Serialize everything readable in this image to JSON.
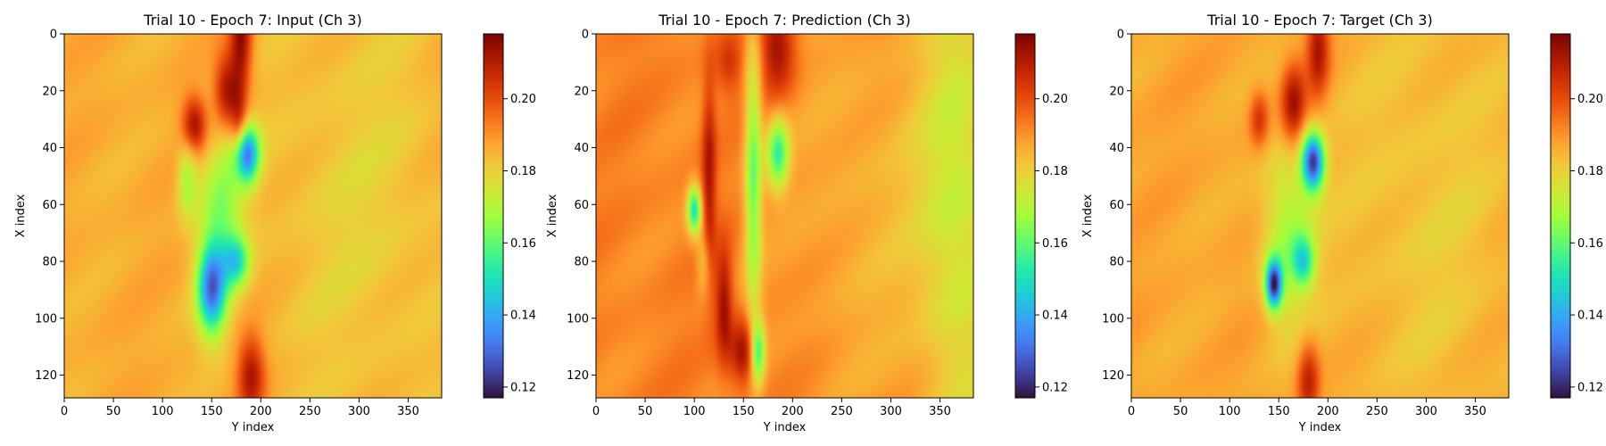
{
  "colormap": "turbo",
  "colormap_stops": [
    "#30123b",
    "#4145ab",
    "#4675ed",
    "#39a2fc",
    "#1bcfd4",
    "#24eca6",
    "#61fc6c",
    "#a4fc3b",
    "#d1e834",
    "#f3c63a",
    "#fe9b2d",
    "#f36315",
    "#d93806",
    "#b11901",
    "#7a0402"
  ],
  "chart_data": [
    {
      "type": "heatmap",
      "title": "Trial 10 - Epoch 7: Input (Ch 3)",
      "xlabel": "Y index",
      "ylabel": "X index",
      "xlim": [
        0,
        384
      ],
      "ylim": [
        128,
        0
      ],
      "xticks": [
        "0",
        "50",
        "100",
        "150",
        "200",
        "250",
        "300",
        "350"
      ],
      "yticks": [
        "0",
        "20",
        "40",
        "60",
        "80",
        "100",
        "120"
      ],
      "colorbar": {
        "range": [
          0.117,
          0.218
        ],
        "ticks": [
          "0.12",
          "0.14",
          "0.16",
          "0.18",
          "0.20"
        ]
      },
      "background_value": 0.186,
      "features": [
        {
          "x": 180,
          "y": 2,
          "sx": 8,
          "sy": 14,
          "value": 0.215
        },
        {
          "x": 165,
          "y": 20,
          "sx": 9,
          "sy": 9,
          "value": 0.212
        },
        {
          "x": 132,
          "y": 32,
          "sx": 9,
          "sy": 7,
          "value": 0.214
        },
        {
          "x": 178,
          "y": 35,
          "sx": 6,
          "sy": 10,
          "value": 0.208
        },
        {
          "x": 185,
          "y": 42,
          "sx": 9,
          "sy": 7,
          "value": 0.132
        },
        {
          "x": 150,
          "y": 90,
          "sx": 10,
          "sy": 11,
          "value": 0.138
        },
        {
          "x": 175,
          "y": 80,
          "sx": 9,
          "sy": 6,
          "value": 0.158
        },
        {
          "x": 160,
          "y": 65,
          "sx": 16,
          "sy": 20,
          "value": 0.165
        },
        {
          "x": 125,
          "y": 50,
          "sx": 7,
          "sy": 10,
          "value": 0.168
        },
        {
          "x": 190,
          "y": 120,
          "sx": 10,
          "sy": 10,
          "value": 0.212
        },
        {
          "x": 300,
          "y": 60,
          "sx": 70,
          "sy": 60,
          "value": 0.18
        }
      ]
    },
    {
      "type": "heatmap",
      "title": "Trial 10 - Epoch 7: Prediction (Ch 3)",
      "xlabel": "Y index",
      "ylabel": "X index",
      "xlim": [
        0,
        384
      ],
      "ylim": [
        128,
        0
      ],
      "xticks": [
        "0",
        "50",
        "100",
        "150",
        "200",
        "250",
        "300",
        "350"
      ],
      "yticks": [
        "0",
        "20",
        "40",
        "60",
        "80",
        "100",
        "120"
      ],
      "colorbar": {
        "range": [
          0.117,
          0.218
        ],
        "ticks": [
          "0.12",
          "0.14",
          "0.16",
          "0.18",
          "0.20"
        ]
      },
      "background_value": 0.192,
      "features": [
        {
          "x": 185,
          "y": 5,
          "sx": 12,
          "sy": 12,
          "value": 0.214
        },
        {
          "x": 135,
          "y": 10,
          "sx": 10,
          "sy": 8,
          "value": 0.205
        },
        {
          "x": 160,
          "y": 50,
          "sx": 6,
          "sy": 35,
          "value": 0.162
        },
        {
          "x": 185,
          "y": 42,
          "sx": 8,
          "sy": 9,
          "value": 0.158
        },
        {
          "x": 100,
          "y": 62,
          "sx": 5,
          "sy": 6,
          "value": 0.152
        },
        {
          "x": 115,
          "y": 50,
          "sx": 5,
          "sy": 25,
          "value": 0.212
        },
        {
          "x": 130,
          "y": 95,
          "sx": 6,
          "sy": 14,
          "value": 0.214
        },
        {
          "x": 150,
          "y": 112,
          "sx": 10,
          "sy": 8,
          "value": 0.216
        },
        {
          "x": 165,
          "y": 112,
          "sx": 5,
          "sy": 8,
          "value": 0.158
        },
        {
          "x": 110,
          "y": 80,
          "sx": 5,
          "sy": 8,
          "value": 0.178
        },
        {
          "x": 370,
          "y": 60,
          "sx": 30,
          "sy": 70,
          "value": 0.175
        },
        {
          "x": 280,
          "y": 60,
          "sx": 60,
          "sy": 60,
          "value": 0.185
        }
      ]
    },
    {
      "type": "heatmap",
      "title": "Trial 10 - Epoch 7: Target (Ch 3)",
      "xlabel": "Y index",
      "ylabel": "X index",
      "xlim": [
        0,
        384
      ],
      "ylim": [
        128,
        0
      ],
      "xticks": [
        "0",
        "50",
        "100",
        "150",
        "200",
        "250",
        "300",
        "350"
      ],
      "yticks": [
        "0",
        "20",
        "40",
        "60",
        "80",
        "100",
        "120"
      ],
      "colorbar": {
        "range": [
          0.117,
          0.218
        ],
        "ticks": [
          "0.12",
          "0.14",
          "0.16",
          "0.18",
          "0.20"
        ]
      },
      "background_value": 0.187,
      "features": [
        {
          "x": 165,
          "y": 25,
          "sx": 9,
          "sy": 10,
          "value": 0.214
        },
        {
          "x": 190,
          "y": 5,
          "sx": 8,
          "sy": 12,
          "value": 0.212
        },
        {
          "x": 130,
          "y": 30,
          "sx": 7,
          "sy": 7,
          "value": 0.205
        },
        {
          "x": 185,
          "y": 45,
          "sx": 8,
          "sy": 7,
          "value": 0.125
        },
        {
          "x": 145,
          "y": 88,
          "sx": 6,
          "sy": 6,
          "value": 0.125
        },
        {
          "x": 160,
          "y": 70,
          "sx": 18,
          "sy": 22,
          "value": 0.168
        },
        {
          "x": 175,
          "y": 80,
          "sx": 8,
          "sy": 6,
          "value": 0.158
        },
        {
          "x": 180,
          "y": 122,
          "sx": 8,
          "sy": 10,
          "value": 0.21
        },
        {
          "x": 300,
          "y": 60,
          "sx": 70,
          "sy": 60,
          "value": 0.181
        }
      ]
    }
  ]
}
